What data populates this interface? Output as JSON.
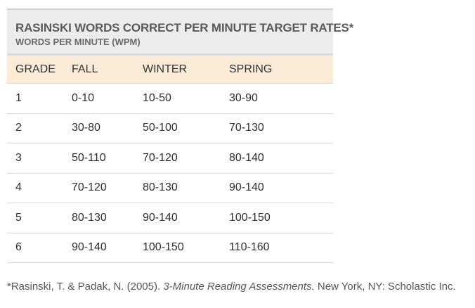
{
  "table": {
    "title": "RASINSKI WORDS CORRECT PER MINUTE TARGET RATES*",
    "subtitle": "WORDS PER MINUTE (WPM)",
    "headers": [
      "GRADE",
      "FALL",
      "WINTER",
      "SPRING"
    ],
    "rows": [
      [
        "1",
        "0-10",
        "10-50",
        "30-90"
      ],
      [
        "2",
        "30-80",
        "50-100",
        "70-130"
      ],
      [
        "3",
        "50-110",
        "70-120",
        "80-140"
      ],
      [
        "4",
        "70-120",
        "80-130",
        "90-140"
      ],
      [
        "5",
        "80-130",
        "90-140",
        "100-150"
      ],
      [
        "6",
        "90-140",
        "100-150",
        "110-160"
      ]
    ]
  },
  "citation": {
    "prefix": "*Rasinski, T. & Padak, N. (2005). ",
    "title": "3-Minute Reading Assessments.",
    "suffix": " New York, NY: Scholastic Inc."
  }
}
